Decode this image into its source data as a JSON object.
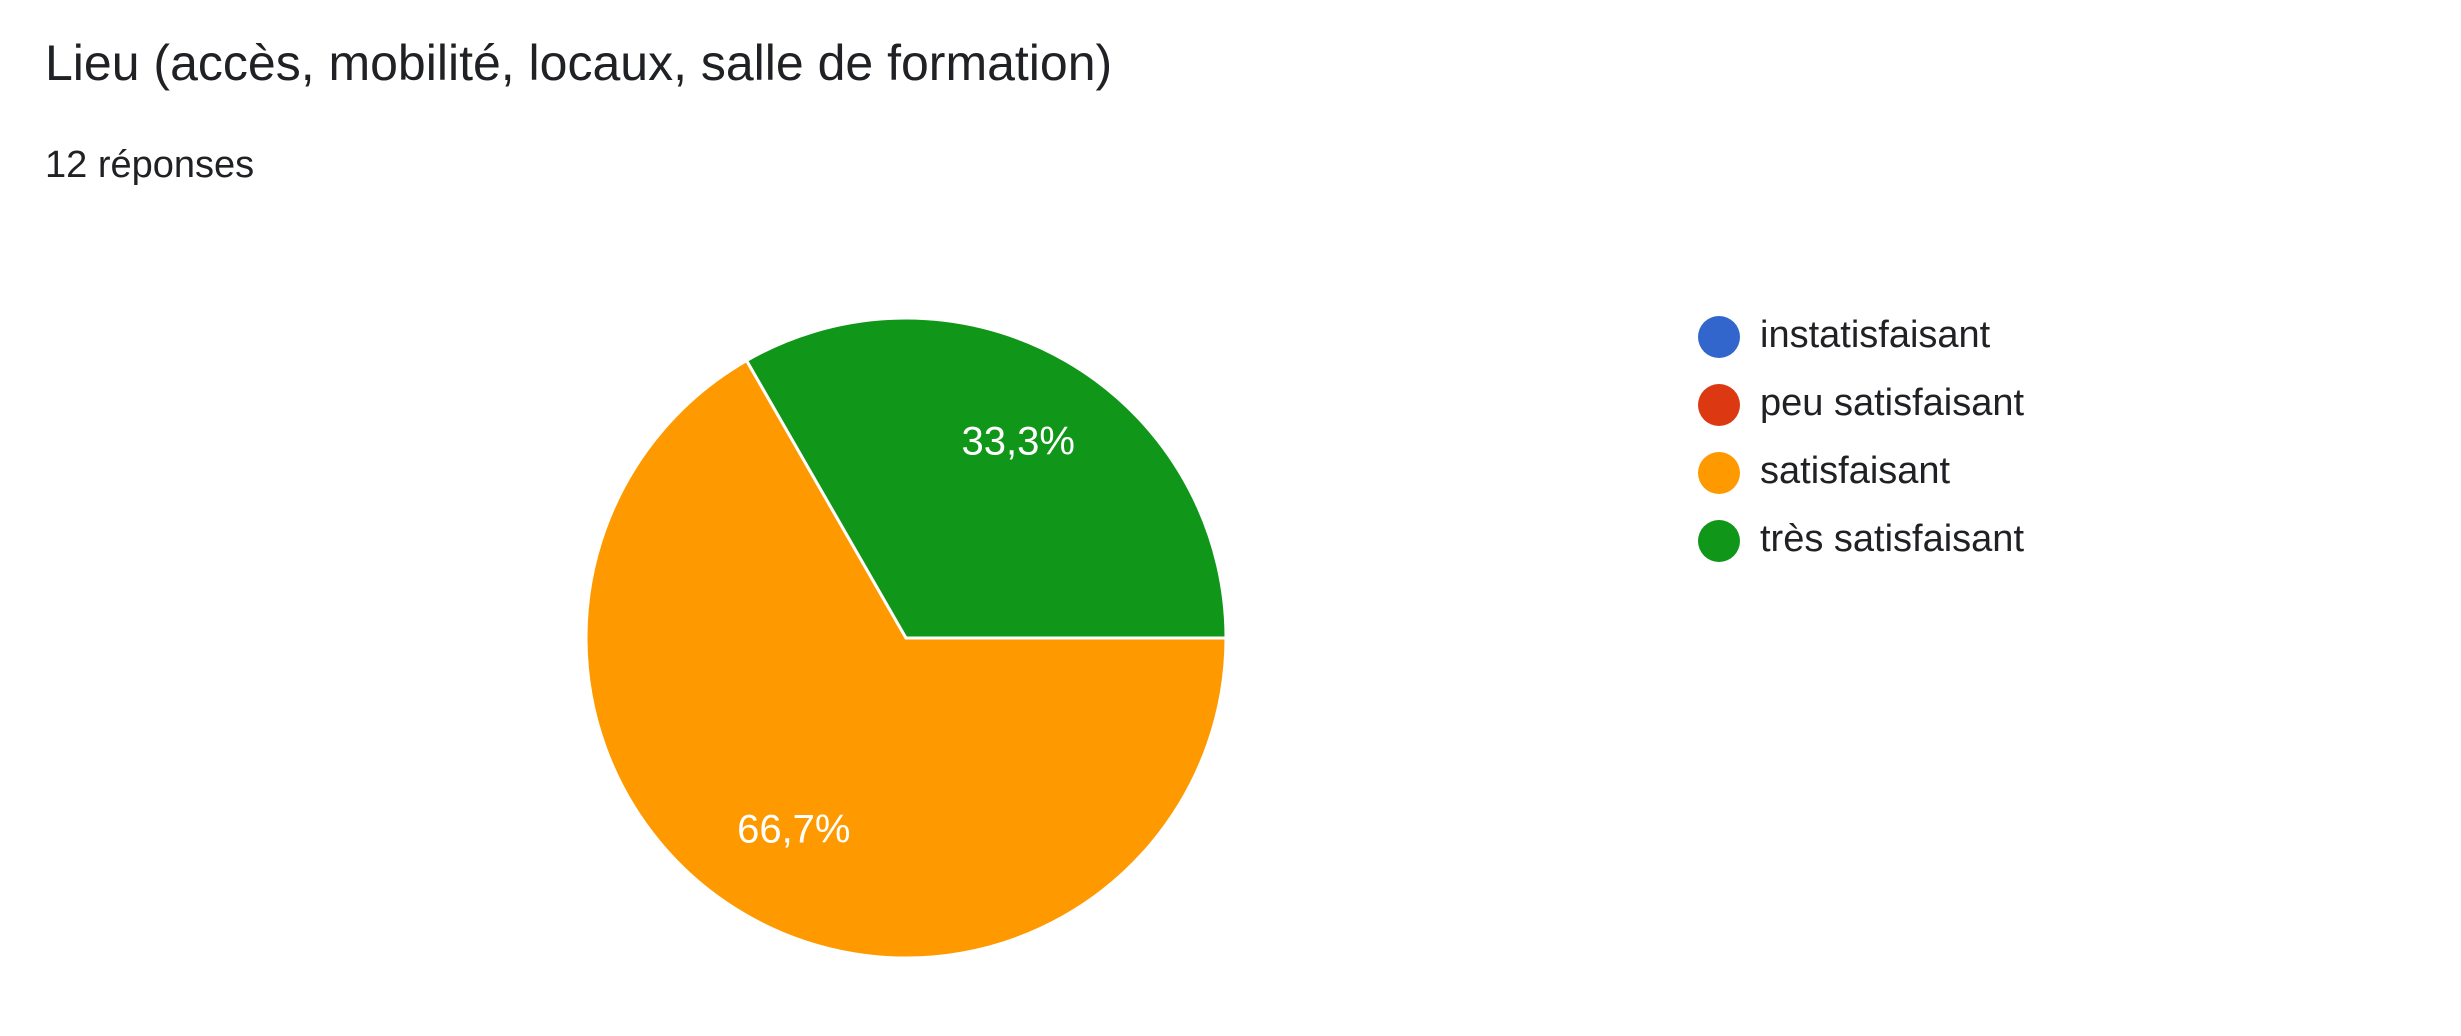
{
  "chart_data": {
    "type": "pie",
    "title": "Lieu (accès, mobilité, locaux, salle de formation)",
    "subtitle": "12 réponses",
    "categories": [
      "instatisfaisant",
      "peu satisfaisant",
      "satisfaisant",
      "très satisfaisant"
    ],
    "values": [
      0,
      0,
      66.7,
      33.3
    ],
    "value_labels": [
      null,
      null,
      "66,7%",
      "33,3%"
    ],
    "colors": [
      "#3366cc",
      "#dc3912",
      "#ff9900",
      "#109618"
    ],
    "legend": "right"
  }
}
